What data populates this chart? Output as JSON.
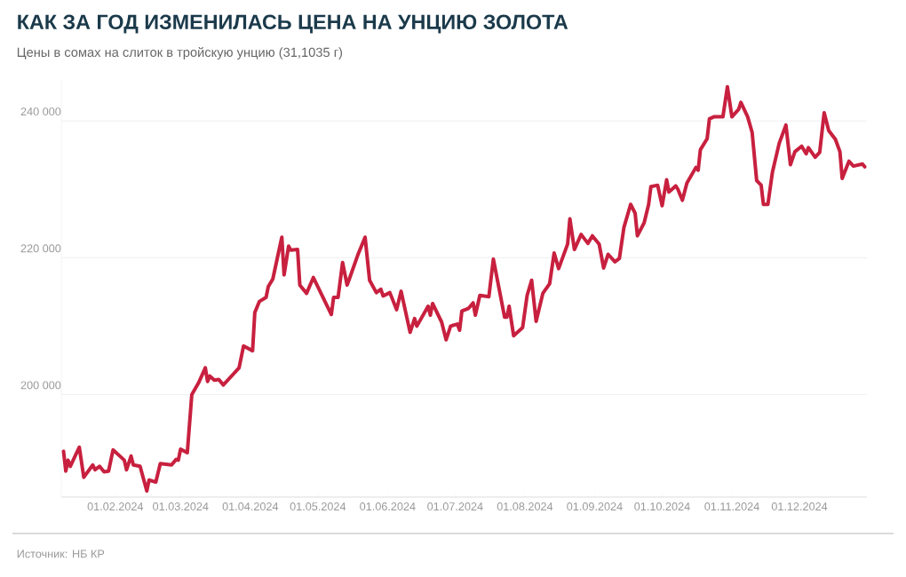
{
  "chart_data": {
    "type": "line",
    "title": "КАК ЗА ГОД ИЗМЕНИЛАСЬ ЦЕНА НА УНЦИЮ ЗОЛОТА",
    "subtitle": "Цены в сомах на слиток в тройскую унцию (31,1035 г)",
    "annotations": [
      "Источник: НБ КР"
    ],
    "x": [
      "2024-01-09",
      "2024-01-10",
      "2024-01-11",
      "2024-01-12",
      "2024-01-16",
      "2024-01-18",
      "2024-01-22",
      "2024-01-23",
      "2024-01-25",
      "2024-01-27",
      "2024-01-29",
      "2024-01-31",
      "2024-02-05",
      "2024-02-06",
      "2024-02-08",
      "2024-02-09",
      "2024-02-12",
      "2024-02-15",
      "2024-02-16",
      "2024-02-19",
      "2024-02-21",
      "2024-02-26",
      "2024-02-28",
      "2024-02-29",
      "2024-03-01",
      "2024-03-04",
      "2024-03-06",
      "2024-03-09",
      "2024-03-12",
      "2024-03-13",
      "2024-03-14",
      "2024-03-16",
      "2024-03-18",
      "2024-03-20",
      "2024-03-27",
      "2024-03-29",
      "2024-04-02",
      "2024-04-03",
      "2024-04-05",
      "2024-04-08",
      "2024-04-09",
      "2024-04-11",
      "2024-04-15",
      "2024-04-16",
      "2024-04-18",
      "2024-04-19",
      "2024-04-22",
      "2024-04-23",
      "2024-04-26",
      "2024-04-29",
      "2024-05-07",
      "2024-05-08",
      "2024-05-10",
      "2024-05-12",
      "2024-05-14",
      "2024-05-15",
      "2024-05-19",
      "2024-05-22",
      "2024-05-24",
      "2024-05-27",
      "2024-05-29",
      "2024-05-30",
      "2024-06-02",
      "2024-06-05",
      "2024-06-07",
      "2024-06-11",
      "2024-06-13",
      "2024-06-14",
      "2024-06-19",
      "2024-06-20",
      "2024-06-21",
      "2024-06-25",
      "2024-06-27",
      "2024-06-29",
      "2024-07-02",
      "2024-07-03",
      "2024-07-04",
      "2024-07-07",
      "2024-07-09",
      "2024-07-10",
      "2024-07-12",
      "2024-07-16",
      "2024-07-18",
      "2024-07-23",
      "2024-07-24",
      "2024-07-25",
      "2024-07-27",
      "2024-07-31",
      "2024-08-02",
      "2024-08-04",
      "2024-08-06",
      "2024-08-09",
      "2024-08-12",
      "2024-08-14",
      "2024-08-16",
      "2024-08-20",
      "2024-08-21",
      "2024-08-23",
      "2024-08-26",
      "2024-08-29",
      "2024-08-31",
      "2024-09-03",
      "2024-09-05",
      "2024-09-07",
      "2024-09-10",
      "2024-09-12",
      "2024-09-14",
      "2024-09-17",
      "2024-09-19",
      "2024-09-20",
      "2024-09-23",
      "2024-09-25",
      "2024-09-26",
      "2024-09-29",
      "2024-10-01",
      "2024-10-03",
      "2024-10-04",
      "2024-10-07",
      "2024-10-08",
      "2024-10-10",
      "2024-10-12",
      "2024-10-16",
      "2024-10-17",
      "2024-10-18",
      "2024-10-21",
      "2024-10-22",
      "2024-10-24",
      "2024-10-28",
      "2024-10-30",
      "2024-11-01",
      "2024-11-04",
      "2024-11-05",
      "2024-11-08",
      "2024-11-10",
      "2024-11-12",
      "2024-11-14",
      "2024-11-15",
      "2024-11-17",
      "2024-11-19",
      "2024-11-22",
      "2024-11-25",
      "2024-11-27",
      "2024-11-29",
      "2024-12-02",
      "2024-12-04",
      "2024-12-05",
      "2024-12-08",
      "2024-12-10",
      "2024-12-12",
      "2024-12-14",
      "2024-12-17",
      "2024-12-19",
      "2024-12-20",
      "2024-12-23",
      "2024-12-25",
      "2024-12-29",
      "2024-12-30"
    ],
    "series": [
      {
        "color": "#c8203f",
        "values": [
          191700,
          188800,
          190400,
          189500,
          192300,
          187900,
          189700,
          189000,
          189500,
          188700,
          188800,
          191900,
          190400,
          189000,
          191000,
          189700,
          189500,
          185900,
          187500,
          187200,
          189900,
          189700,
          190500,
          190400,
          192000,
          191500,
          200000,
          201700,
          203900,
          201900,
          202700,
          202100,
          202200,
          201400,
          203900,
          207100,
          206400,
          212000,
          213600,
          214200,
          215800,
          216900,
          223000,
          217500,
          221700,
          221100,
          221200,
          216000,
          214800,
          217100,
          211700,
          214200,
          214200,
          219300,
          216000,
          216900,
          220600,
          223000,
          216700,
          214900,
          215400,
          214400,
          214900,
          212400,
          215100,
          209100,
          211100,
          210000,
          212900,
          211600,
          213300,
          210600,
          208000,
          210000,
          210300,
          209400,
          212200,
          212600,
          213400,
          211600,
          214500,
          214300,
          219800,
          211300,
          211300,
          212900,
          208600,
          209800,
          214500,
          216700,
          210700,
          214800,
          216200,
          220700,
          218400,
          222000,
          225700,
          221200,
          223400,
          222100,
          223200,
          222000,
          218500,
          220500,
          219400,
          219900,
          224400,
          227800,
          226500,
          223200,
          225100,
          227800,
          230400,
          230600,
          227600,
          231400,
          229600,
          230500,
          230000,
          228400,
          230900,
          233200,
          232800,
          235800,
          237400,
          240300,
          240600,
          240600,
          245000,
          240600,
          241700,
          242700,
          240600,
          238300,
          231300,
          230600,
          227800,
          227800,
          232500,
          236700,
          239400,
          233600,
          235500,
          236300,
          235200,
          236100,
          234700,
          235400,
          241200,
          238600,
          237300,
          235500,
          231600,
          234100,
          233400,
          233700,
          233300
        ]
      }
    ],
    "xlim": [
      "2024-01-08",
      "2024-12-31"
    ],
    "xticks": [
      {
        "value": "2024-02-01",
        "label": "01.02.2024"
      },
      {
        "value": "2024-03-01",
        "label": "01.03.2024"
      },
      {
        "value": "2024-04-01",
        "label": "01.04.2024"
      },
      {
        "value": "2024-05-01",
        "label": "01.05.2024"
      },
      {
        "value": "2024-06-01",
        "label": "01.06.2024"
      },
      {
        "value": "2024-07-01",
        "label": "01.07.2024"
      },
      {
        "value": "2024-08-01",
        "label": "01.08.2024"
      },
      {
        "value": "2024-09-01",
        "label": "01.09.2024"
      },
      {
        "value": "2024-10-01",
        "label": "01.10.2024"
      },
      {
        "value": "2024-11-01",
        "label": "01.11.2024"
      },
      {
        "value": "2024-12-01",
        "label": "01.12.2024"
      }
    ],
    "ylim": [
      185000,
      246000
    ],
    "yticks": [
      {
        "value": 200000,
        "label": "200 000"
      },
      {
        "value": 220000,
        "label": "220 000"
      },
      {
        "value": 240000,
        "label": "240 000"
      }
    ],
    "grid": "y",
    "marker": "none",
    "line_style": "solid"
  }
}
